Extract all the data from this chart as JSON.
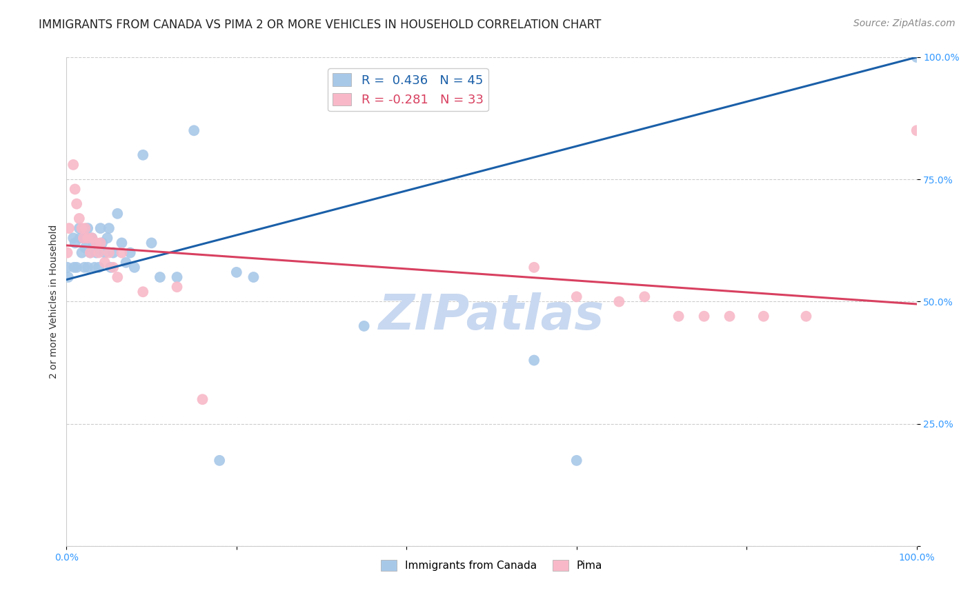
{
  "title": "IMMIGRANTS FROM CANADA VS PIMA 2 OR MORE VEHICLES IN HOUSEHOLD CORRELATION CHART",
  "source": "Source: ZipAtlas.com",
  "ylabel": "2 or more Vehicles in Household",
  "xlim": [
    0.0,
    1.0
  ],
  "ylim": [
    0.0,
    1.0
  ],
  "xtick_positions": [
    0.0,
    0.2,
    0.4,
    0.6,
    0.8,
    1.0
  ],
  "xtick_labels": [
    "0.0%",
    "",
    "",
    "",
    "",
    "100.0%"
  ],
  "ytick_positions": [
    0.0,
    0.25,
    0.5,
    0.75,
    1.0
  ],
  "ytick_labels": [
    "",
    "25.0%",
    "50.0%",
    "75.0%",
    "100.0%"
  ],
  "blue_color": "#a8c8e8",
  "pink_color": "#f8b8c8",
  "blue_line_color": "#1a5fa8",
  "pink_line_color": "#d84060",
  "background_color": "#ffffff",
  "grid_color": "#cccccc",
  "watermark_text": "ZIPatlas",
  "watermark_color": "#c8d8f0",
  "blue_scatter_x": [
    0.001,
    0.002,
    0.008,
    0.009,
    0.01,
    0.012,
    0.015,
    0.016,
    0.018,
    0.02,
    0.021,
    0.022,
    0.025,
    0.025,
    0.025,
    0.028,
    0.03,
    0.032,
    0.033,
    0.035,
    0.038,
    0.04,
    0.042,
    0.045,
    0.048,
    0.05,
    0.052,
    0.055,
    0.06,
    0.065,
    0.07,
    0.075,
    0.08,
    0.09,
    0.1,
    0.11,
    0.13,
    0.15,
    0.18,
    0.2,
    0.22,
    0.35,
    0.55,
    0.6,
    1.0
  ],
  "blue_scatter_y": [
    0.57,
    0.55,
    0.63,
    0.57,
    0.62,
    0.57,
    0.65,
    0.63,
    0.6,
    0.63,
    0.57,
    0.61,
    0.65,
    0.63,
    0.57,
    0.6,
    0.63,
    0.62,
    0.57,
    0.6,
    0.57,
    0.65,
    0.62,
    0.6,
    0.63,
    0.65,
    0.57,
    0.6,
    0.68,
    0.62,
    0.58,
    0.6,
    0.57,
    0.8,
    0.62,
    0.55,
    0.55,
    0.85,
    0.175,
    0.56,
    0.55,
    0.45,
    0.38,
    0.175,
    1.0
  ],
  "pink_scatter_x": [
    0.001,
    0.003,
    0.008,
    0.01,
    0.012,
    0.015,
    0.018,
    0.02,
    0.022,
    0.025,
    0.028,
    0.03,
    0.035,
    0.038,
    0.04,
    0.045,
    0.05,
    0.055,
    0.06,
    0.065,
    0.09,
    0.13,
    0.16,
    0.55,
    0.6,
    0.65,
    0.68,
    0.72,
    0.75,
    0.78,
    0.82,
    0.87,
    1.0
  ],
  "pink_scatter_y": [
    0.6,
    0.65,
    0.78,
    0.73,
    0.7,
    0.67,
    0.65,
    0.63,
    0.65,
    0.63,
    0.6,
    0.63,
    0.62,
    0.6,
    0.62,
    0.58,
    0.6,
    0.57,
    0.55,
    0.6,
    0.52,
    0.53,
    0.3,
    0.57,
    0.51,
    0.5,
    0.51,
    0.47,
    0.47,
    0.47,
    0.47,
    0.47,
    0.85
  ],
  "title_fontsize": 12,
  "axis_label_fontsize": 10,
  "tick_fontsize": 10,
  "legend_fontsize": 13,
  "source_fontsize": 10,
  "blue_line_x0": 0.0,
  "blue_line_y0": 0.545,
  "blue_line_x1": 1.0,
  "blue_line_y1": 1.0,
  "pink_line_x0": 0.0,
  "pink_line_y0": 0.615,
  "pink_line_x1": 1.0,
  "pink_line_y1": 0.495
}
